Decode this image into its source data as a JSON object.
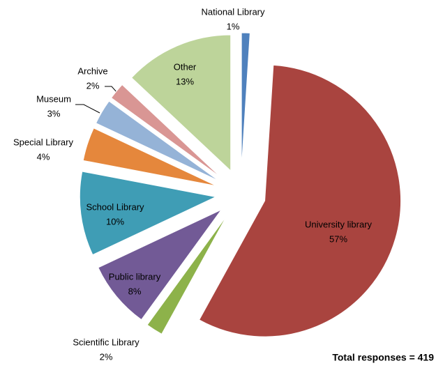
{
  "chart_data": {
    "type": "pie",
    "categories": [
      "National Library",
      "University library",
      "Scientific Library",
      "Public library",
      "School Library",
      "Special Library",
      "Museum",
      "Archive",
      "Other"
    ],
    "values": [
      1,
      57,
      2,
      8,
      10,
      4,
      3,
      2,
      13
    ],
    "value_labels": [
      "1%",
      "57%",
      "2%",
      "8%",
      "10%",
      "4%",
      "3%",
      "2%",
      "13%"
    ],
    "colors": [
      "#4f81bd",
      "#a9443f",
      "#8db24a",
      "#725a96",
      "#3f9db5",
      "#e5873c",
      "#95b3d7",
      "#d99694",
      "#bdd49a"
    ],
    "annotation": "Total responses = 419"
  }
}
